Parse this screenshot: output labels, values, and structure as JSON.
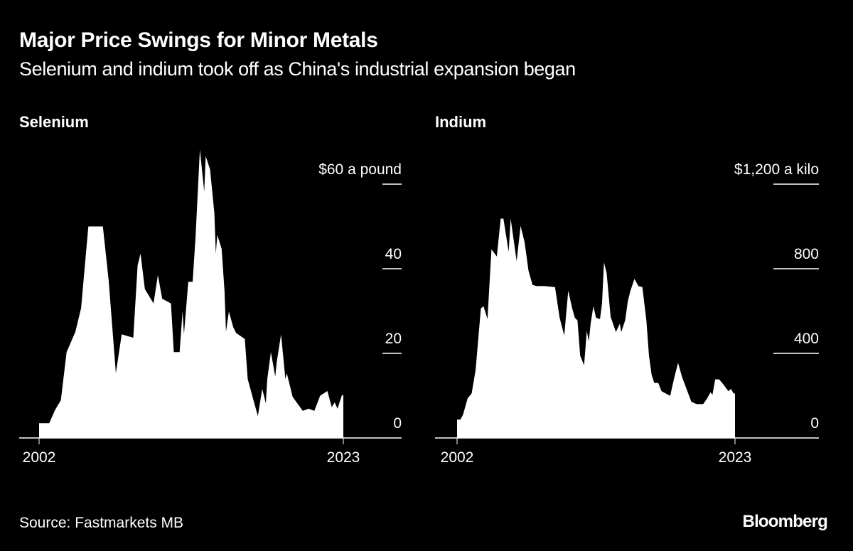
{
  "header": {
    "title": "Major Price Swings for Minor Metals",
    "subtitle": "Selenium and indium took off as China's industrial expansion began"
  },
  "footer": {
    "source": "Source: Fastmarkets MB",
    "logo": "Bloomberg"
  },
  "colors": {
    "background": "#000000",
    "fill": "#ffffff"
  },
  "chart_data": [
    {
      "type": "area",
      "title": "Selenium",
      "unit_label": "$60 a pound",
      "ylim": [
        0,
        60
      ],
      "yticks": [
        0,
        20,
        40,
        60
      ],
      "ytick_labels": [
        "0",
        "20",
        "40",
        "$60 a pound"
      ],
      "xlim": [
        2002,
        2023
      ],
      "xtick_labels": [
        "2002",
        "2023"
      ],
      "grid": true,
      "x": [
        2002.0,
        2002.7,
        2003.1,
        2003.5,
        2003.9,
        2004.5,
        2004.9,
        2005.4,
        2006.4,
        2006.8,
        2007.3,
        2007.7,
        2008.5,
        2008.8,
        2009.0,
        2009.3,
        2009.9,
        2010.2,
        2010.5,
        2011.1,
        2011.3,
        2011.7,
        2011.9,
        2012.0,
        2012.3,
        2012.6,
        2012.8,
        2013.1,
        2013.4,
        2013.5,
        2013.8,
        2014.1,
        2014.2,
        2014.3,
        2014.6,
        2014.8,
        2014.9,
        2015.1,
        2015.4,
        2015.6,
        2016.2,
        2016.4,
        2016.8,
        2017.1,
        2017.4,
        2017.65,
        2017.75,
        2018.0,
        2018.3,
        2018.4,
        2018.7,
        2019.0,
        2019.1,
        2019.5,
        2020.2,
        2020.6,
        2021.0,
        2021.4,
        2021.9,
        2022.2,
        2022.4,
        2022.6,
        2022.9,
        2023.0
      ],
      "values": [
        3.5,
        3.5,
        6.6,
        8.9,
        20.3,
        25.1,
        30.7,
        50,
        50,
        37.4,
        15.3,
        24.5,
        23.7,
        40.8,
        43.6,
        35.2,
        31.8,
        38.5,
        32.9,
        31.8,
        20.3,
        20.3,
        29.9,
        24.5,
        36.9,
        36.9,
        47.5,
        68.2,
        58.2,
        66.6,
        63.5,
        53.1,
        43.6,
        48,
        44.7,
        34.6,
        25.1,
        29.9,
        26.2,
        24.8,
        23.4,
        13.9,
        8.9,
        5.2,
        11.6,
        8.2,
        13.9,
        20.3,
        14.5,
        17.8,
        24.5,
        13.9,
        15.3,
        9.7,
        6.4,
        6.9,
        6.4,
        10.0,
        11.1,
        7.3,
        8.4,
        6.9,
        10.1,
        10.1
      ]
    },
    {
      "type": "area",
      "title": "Indium",
      "unit_label": "$1,200 a kilo",
      "ylim": [
        0,
        1200
      ],
      "yticks": [
        0,
        400,
        800,
        1200
      ],
      "ytick_labels": [
        "0",
        "400",
        "800",
        "$1,200 a kilo"
      ],
      "xlim": [
        2002,
        2023
      ],
      "xtick_labels": [
        "2002",
        "2023"
      ],
      "grid": true,
      "x": [
        2002.0,
        2002.25,
        2002.45,
        2002.8,
        2003.1,
        2003.4,
        2003.8,
        2004.0,
        2004.3,
        2004.6,
        2005.0,
        2005.3,
        2005.5,
        2005.9,
        2006.05,
        2006.2,
        2006.5,
        2006.8,
        2007.1,
        2007.4,
        2007.7,
        2008.0,
        2008.6,
        2009.4,
        2009.75,
        2010.1,
        2010.4,
        2010.7,
        2010.9,
        2011.1,
        2011.3,
        2011.6,
        2011.8,
        2011.95,
        2012.1,
        2012.3,
        2012.5,
        2012.8,
        2012.95,
        2013.1,
        2013.3,
        2013.6,
        2014.0,
        2014.3,
        2014.4,
        2014.7,
        2014.9,
        2015.1,
        2015.4,
        2015.7,
        2016.0,
        2016.3,
        2016.5,
        2016.7,
        2016.9,
        2017.2,
        2017.45,
        2018.1,
        2018.4,
        2018.7,
        2019.0,
        2019.7,
        2020.1,
        2020.6,
        2020.9,
        2021.15,
        2021.3,
        2021.5,
        2021.8,
        2022.1,
        2022.5,
        2022.7,
        2022.9,
        2023.0
      ],
      "values": [
        87,
        87,
        110,
        188,
        210,
        322,
        612,
        623,
        562,
        892,
        858,
        1037,
        1037,
        880,
        1037,
        970,
        836,
        1003,
        925,
        791,
        724,
        718,
        718,
        713,
        568,
        484,
        696,
        612,
        568,
        556,
        389,
        344,
        506,
        456,
        545,
        623,
        568,
        562,
        635,
        830,
        780,
        573,
        501,
        540,
        501,
        556,
        646,
        696,
        752,
        718,
        713,
        556,
        389,
        299,
        260,
        260,
        221,
        199,
        283,
        355,
        288,
        171,
        160,
        160,
        188,
        216,
        204,
        277,
        277,
        255,
        221,
        232,
        210,
        210
      ]
    }
  ]
}
